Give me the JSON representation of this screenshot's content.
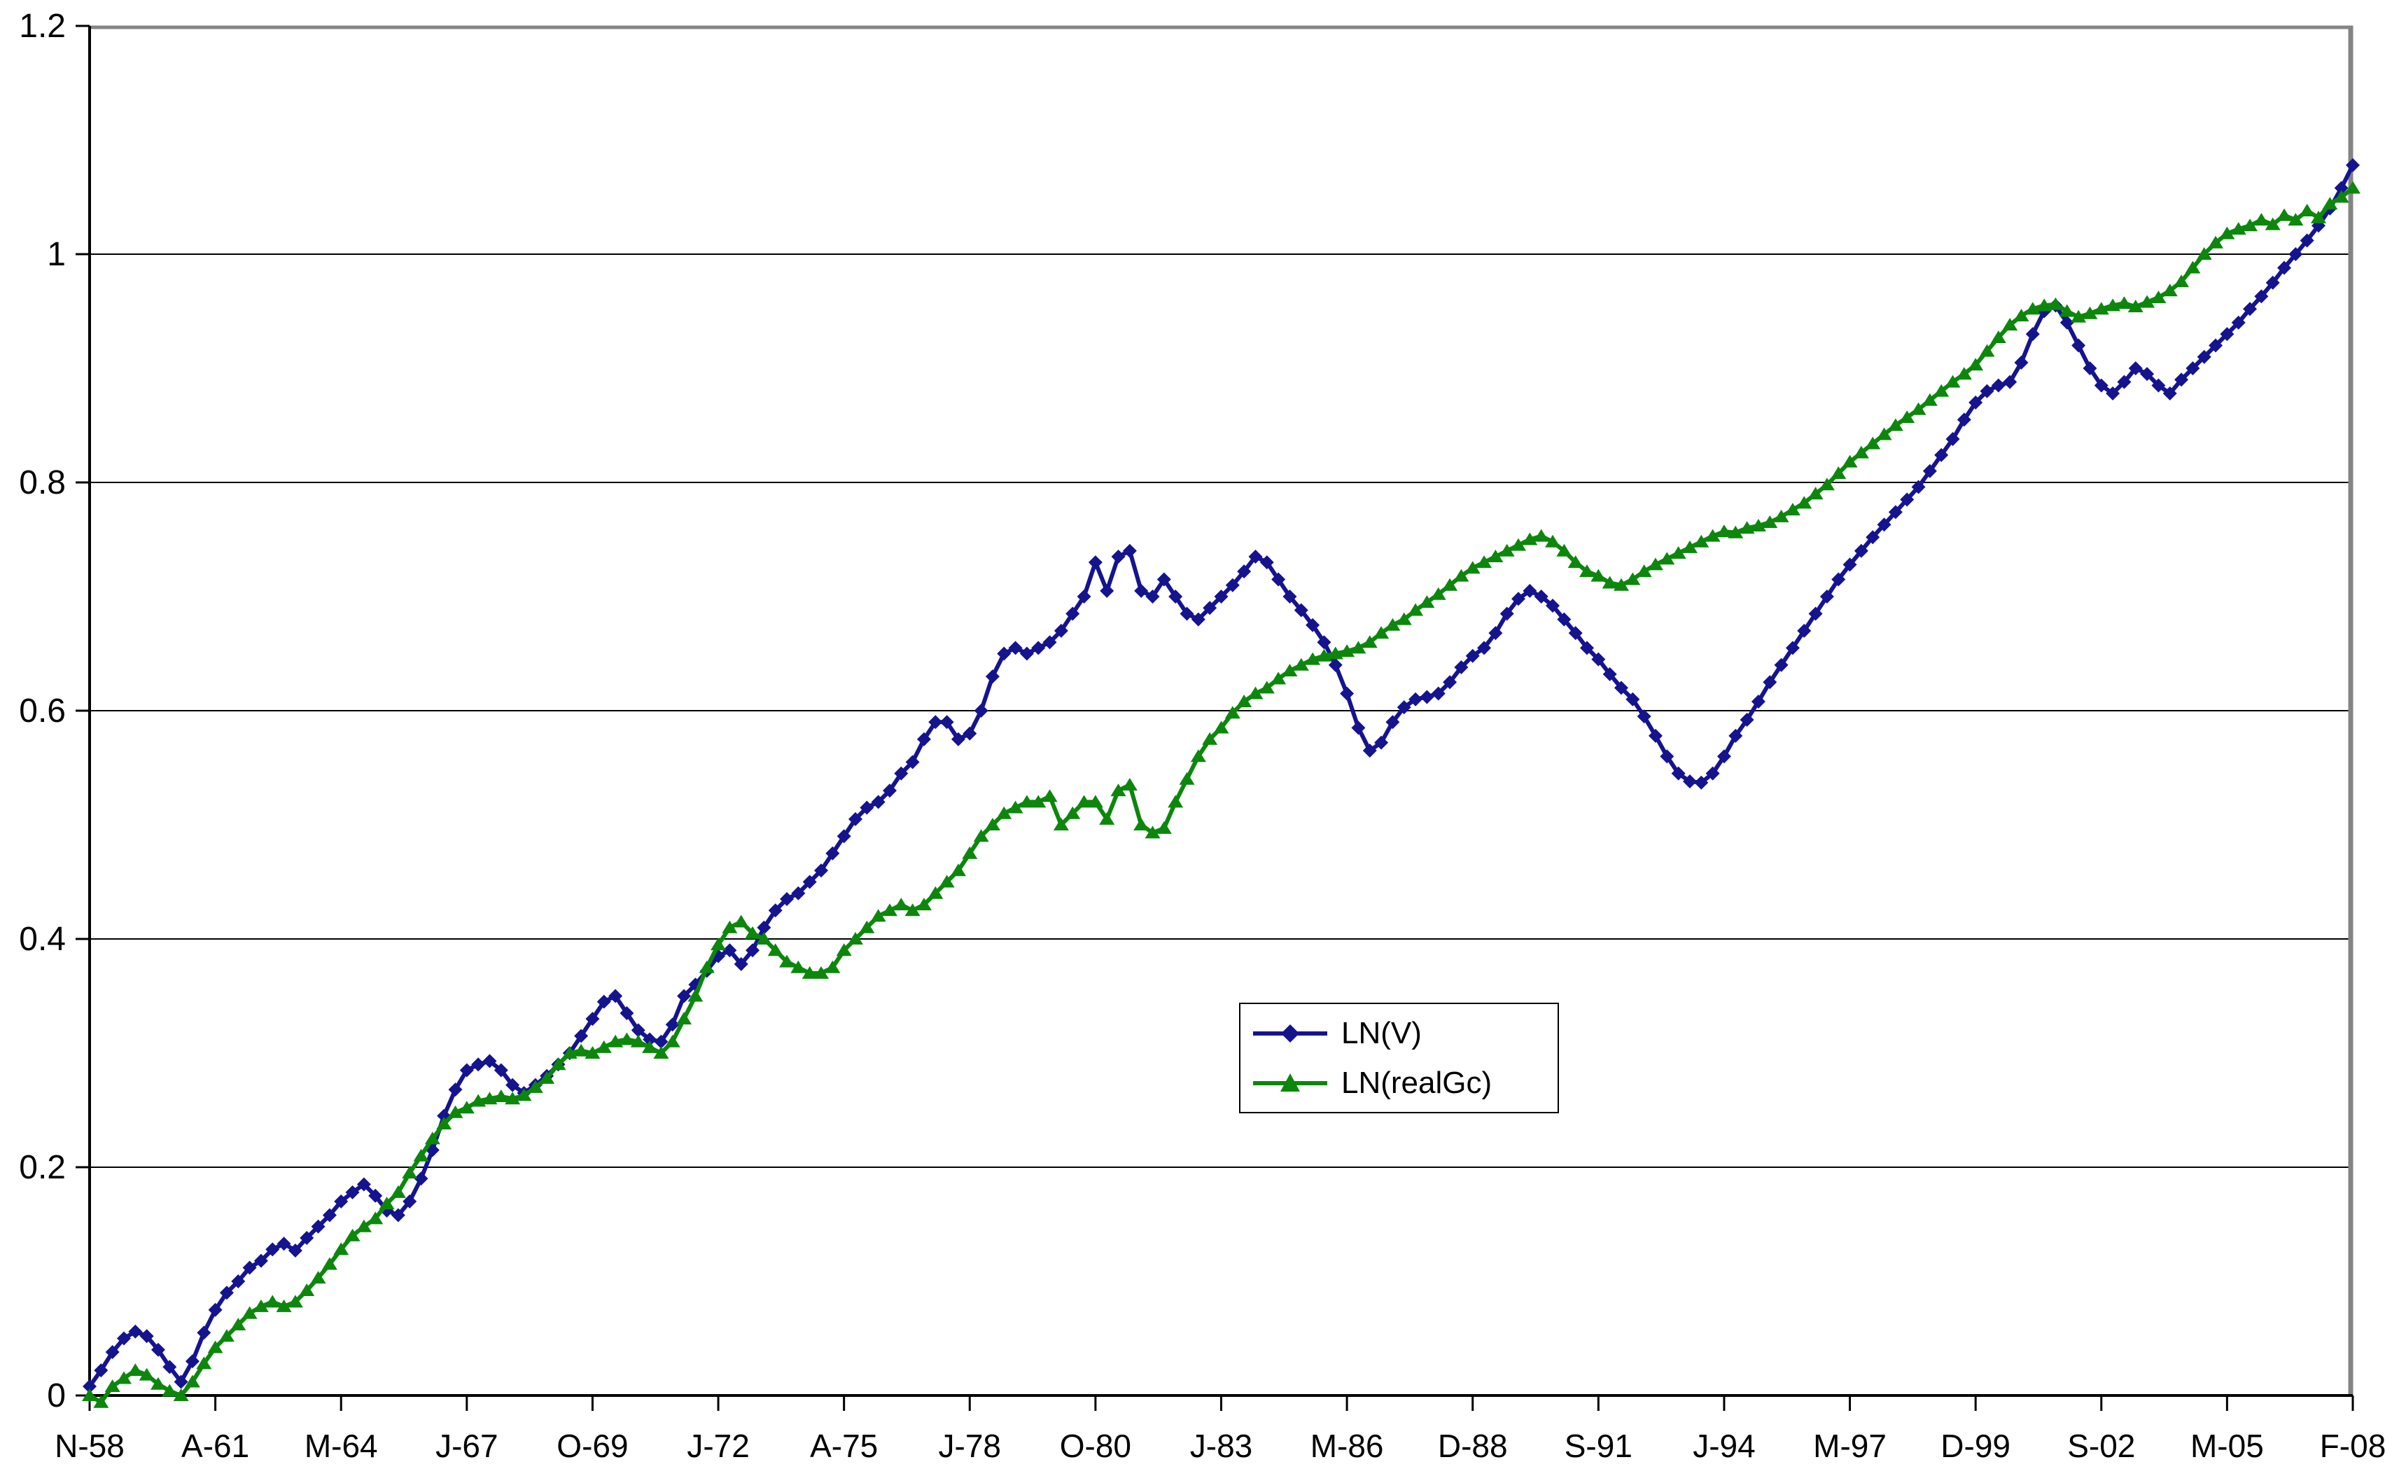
{
  "page": {
    "background": "#FFFFFF"
  },
  "chart_data": {
    "type": "line",
    "title": "",
    "xlabel": "",
    "ylabel": "",
    "ylim": [
      0,
      1.2
    ],
    "grid": "horizontal",
    "legend_position": "inside-center-right",
    "y_ticks": [
      {
        "value": 0,
        "label": "0"
      },
      {
        "value": 0.2,
        "label": "0.2"
      },
      {
        "value": 0.4,
        "label": "0.4"
      },
      {
        "value": 0.6,
        "label": "0.6"
      },
      {
        "value": 0.8,
        "label": "0.8"
      },
      {
        "value": 1,
        "label": "1"
      },
      {
        "value": 1.2,
        "label": "1.2"
      }
    ],
    "x_tick_labels": [
      "N-58",
      "A-61",
      "M-64",
      "J-67",
      "O-69",
      "J-72",
      "A-75",
      "J-78",
      "O-80",
      "J-83",
      "M-86",
      "D-88",
      "S-91",
      "J-94",
      "M-97",
      "D-99",
      "S-02",
      "M-05",
      "F-08"
    ],
    "points_per_label_interval": 11,
    "colors": {
      "gridline": "#000000",
      "axis": "#000000",
      "plot_border_top_right": "#848484",
      "background": "#FFFFFF"
    },
    "series": [
      {
        "name": "LN(V)",
        "color": "#14148F",
        "marker": "diamond",
        "values": [
          0.008,
          0.022,
          0.038,
          0.05,
          0.056,
          0.052,
          0.04,
          0.025,
          0.012,
          0.03,
          0.055,
          0.075,
          0.09,
          0.1,
          0.112,
          0.118,
          0.128,
          0.133,
          0.127,
          0.138,
          0.148,
          0.158,
          0.17,
          0.178,
          0.185,
          0.175,
          0.162,
          0.158,
          0.17,
          0.19,
          0.215,
          0.245,
          0.268,
          0.285,
          0.29,
          0.293,
          0.285,
          0.272,
          0.265,
          0.272,
          0.28,
          0.29,
          0.3,
          0.315,
          0.33,
          0.345,
          0.35,
          0.335,
          0.32,
          0.312,
          0.31,
          0.325,
          0.35,
          0.36,
          0.372,
          0.385,
          0.39,
          0.378,
          0.39,
          0.41,
          0.425,
          0.435,
          0.44,
          0.45,
          0.46,
          0.475,
          0.49,
          0.505,
          0.515,
          0.52,
          0.53,
          0.545,
          0.555,
          0.575,
          0.59,
          0.59,
          0.575,
          0.58,
          0.6,
          0.63,
          0.65,
          0.655,
          0.65,
          0.655,
          0.66,
          0.67,
          0.685,
          0.7,
          0.73,
          0.705,
          0.735,
          0.74,
          0.705,
          0.7,
          0.715,
          0.7,
          0.685,
          0.68,
          0.69,
          0.7,
          0.71,
          0.722,
          0.735,
          0.73,
          0.715,
          0.7,
          0.688,
          0.675,
          0.66,
          0.64,
          0.615,
          0.585,
          0.565,
          0.572,
          0.59,
          0.603,
          0.61,
          0.612,
          0.615,
          0.625,
          0.638,
          0.648,
          0.655,
          0.668,
          0.685,
          0.698,
          0.705,
          0.7,
          0.692,
          0.68,
          0.668,
          0.655,
          0.645,
          0.632,
          0.62,
          0.61,
          0.595,
          0.578,
          0.56,
          0.545,
          0.538,
          0.537,
          0.545,
          0.56,
          0.578,
          0.592,
          0.608,
          0.625,
          0.64,
          0.655,
          0.67,
          0.685,
          0.7,
          0.715,
          0.728,
          0.74,
          0.752,
          0.763,
          0.774,
          0.785,
          0.796,
          0.81,
          0.824,
          0.838,
          0.855,
          0.87,
          0.88,
          0.885,
          0.888,
          0.905,
          0.93,
          0.95,
          0.955,
          0.94,
          0.92,
          0.9,
          0.885,
          0.878,
          0.888,
          0.9,
          0.895,
          0.885,
          0.878,
          0.89,
          0.9,
          0.91,
          0.92,
          0.93,
          0.94,
          0.952,
          0.963,
          0.975,
          0.988,
          1.0,
          1.012,
          1.025,
          1.04,
          1.058,
          1.078
        ]
      },
      {
        "name": "LN(realGc)",
        "color": "#0C870C",
        "marker": "triangle",
        "values": [
          0,
          -0.006,
          0.008,
          0.015,
          0.022,
          0.018,
          0.01,
          0.004,
          0,
          0.012,
          0.028,
          0.042,
          0.052,
          0.062,
          0.072,
          0.078,
          0.082,
          0.078,
          0.082,
          0.092,
          0.103,
          0.115,
          0.128,
          0.14,
          0.148,
          0.155,
          0.168,
          0.178,
          0.195,
          0.21,
          0.225,
          0.238,
          0.248,
          0.252,
          0.258,
          0.26,
          0.262,
          0.26,
          0.263,
          0.27,
          0.278,
          0.29,
          0.3,
          0.302,
          0.3,
          0.305,
          0.31,
          0.312,
          0.31,
          0.305,
          0.3,
          0.31,
          0.33,
          0.35,
          0.375,
          0.395,
          0.41,
          0.415,
          0.405,
          0.4,
          0.39,
          0.38,
          0.375,
          0.37,
          0.37,
          0.375,
          0.39,
          0.4,
          0.41,
          0.42,
          0.425,
          0.43,
          0.425,
          0.43,
          0.44,
          0.45,
          0.46,
          0.475,
          0.49,
          0.5,
          0.51,
          0.515,
          0.52,
          0.52,
          0.525,
          0.5,
          0.51,
          0.52,
          0.52,
          0.505,
          0.53,
          0.535,
          0.5,
          0.493,
          0.497,
          0.52,
          0.54,
          0.56,
          0.575,
          0.585,
          0.598,
          0.608,
          0.615,
          0.62,
          0.628,
          0.635,
          0.64,
          0.645,
          0.648,
          0.65,
          0.652,
          0.655,
          0.66,
          0.668,
          0.675,
          0.68,
          0.688,
          0.695,
          0.702,
          0.71,
          0.718,
          0.725,
          0.73,
          0.735,
          0.74,
          0.745,
          0.75,
          0.753,
          0.748,
          0.74,
          0.73,
          0.722,
          0.718,
          0.712,
          0.71,
          0.715,
          0.722,
          0.728,
          0.733,
          0.738,
          0.743,
          0.748,
          0.753,
          0.757,
          0.756,
          0.76,
          0.762,
          0.765,
          0.77,
          0.776,
          0.782,
          0.79,
          0.798,
          0.808,
          0.818,
          0.826,
          0.834,
          0.842,
          0.85,
          0.857,
          0.864,
          0.872,
          0.88,
          0.888,
          0.895,
          0.903,
          0.915,
          0.927,
          0.938,
          0.946,
          0.952,
          0.955,
          0.956,
          0.95,
          0.945,
          0.948,
          0.952,
          0.955,
          0.957,
          0.954,
          0.958,
          0.962,
          0.968,
          0.976,
          0.988,
          1.0,
          1.01,
          1.018,
          1.022,
          1.025,
          1.03,
          1.026,
          1.034,
          1.03,
          1.038,
          1.032,
          1.044,
          1.05,
          1.058
        ]
      }
    ]
  }
}
